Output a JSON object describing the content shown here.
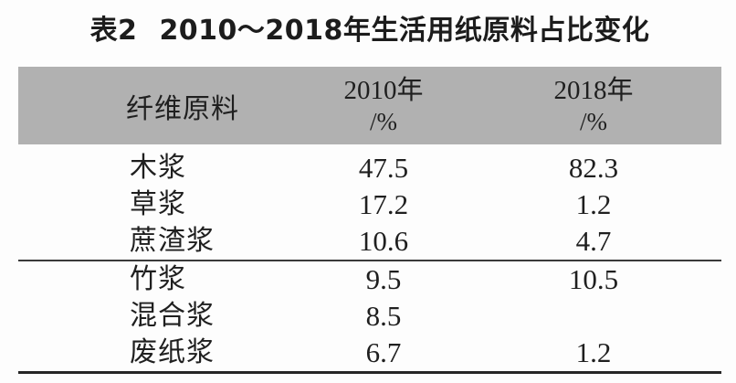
{
  "title": {
    "label": "表2",
    "text": "2010～2018年生活用纸原料占比变化"
  },
  "table": {
    "header": {
      "fiber": "纤维原料",
      "col2010_year": "2010年",
      "col2010_unit": "/%",
      "col2018_year": "2018年",
      "col2018_unit": "/%"
    },
    "rows": [
      {
        "material": "木浆",
        "v2010": "47.5",
        "v2018": "82.3"
      },
      {
        "material": "草浆",
        "v2010": "17.2",
        "v2018": "1.2"
      },
      {
        "material": "蔗渣浆",
        "v2010": "10.6",
        "v2018": "4.7"
      },
      {
        "material": "竹浆",
        "v2010": "9.5",
        "v2018": "10.5"
      },
      {
        "material": "混合浆",
        "v2010": "8.5",
        "v2018": ""
      },
      {
        "material": "废纸浆",
        "v2010": "6.7",
        "v2018": "1.2"
      }
    ]
  },
  "chart_data": {
    "type": "table",
    "title": "表2 2010～2018年生活用纸原料占比变化",
    "columns": [
      "纤维原料",
      "2010年/%",
      "2018年/%"
    ],
    "rows": [
      [
        "木浆",
        47.5,
        82.3
      ],
      [
        "草浆",
        17.2,
        1.2
      ],
      [
        "蔗渣浆",
        10.6,
        4.7
      ],
      [
        "竹浆",
        9.5,
        10.5
      ],
      [
        "混合浆",
        8.5,
        null
      ],
      [
        "废纸浆",
        6.7,
        1.2
      ]
    ]
  },
  "colors": {
    "header_bg": "#b1b1b1",
    "text": "#1f1f1f",
    "mid_rule": "#3a3a3a",
    "bottom_rule": "#262626"
  }
}
